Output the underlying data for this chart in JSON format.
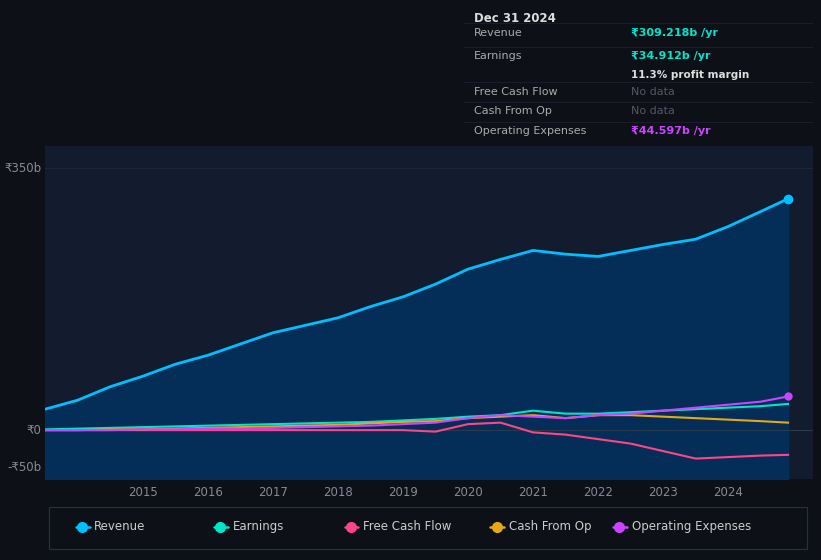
{
  "background_color": "#0d1117",
  "plot_bg_color": "#121c2e",
  "grid_color": "#1e2a3a",
  "ylabel_350": "₹350b",
  "ylabel_0": "₹0",
  "ylabel_neg50": "-₹50b",
  "x_years": [
    2013.5,
    2014.0,
    2014.5,
    2015.0,
    2015.5,
    2016.0,
    2016.5,
    2017.0,
    2017.5,
    2018.0,
    2018.5,
    2019.0,
    2019.5,
    2020.0,
    2020.5,
    2021.0,
    2021.5,
    2022.0,
    2022.5,
    2023.0,
    2023.5,
    2024.0,
    2024.5,
    2024.92
  ],
  "revenue": [
    28,
    40,
    58,
    72,
    88,
    100,
    115,
    130,
    140,
    150,
    165,
    178,
    195,
    215,
    228,
    240,
    235,
    232,
    240,
    248,
    255,
    272,
    292,
    309
  ],
  "earnings": [
    1,
    2,
    3,
    4,
    5,
    6,
    7,
    8,
    9,
    10,
    11,
    13,
    15,
    18,
    20,
    26,
    22,
    22,
    24,
    26,
    28,
    30,
    32,
    35
  ],
  "free_cash_flow": [
    0,
    0,
    0,
    0,
    0,
    0,
    0,
    0,
    0,
    0,
    0,
    0,
    -2,
    8,
    10,
    -3,
    -6,
    -12,
    -18,
    -28,
    -38,
    -36,
    -34,
    -33
  ],
  "cash_from_op": [
    0,
    0,
    1,
    1,
    2,
    3,
    4,
    5,
    6,
    7,
    9,
    11,
    12,
    16,
    18,
    20,
    16,
    20,
    20,
    18,
    16,
    14,
    12,
    10
  ],
  "operating_expenses": [
    0,
    0,
    0,
    1,
    1,
    2,
    2,
    3,
    4,
    5,
    6,
    8,
    10,
    16,
    20,
    18,
    16,
    20,
    22,
    26,
    30,
    34,
    38,
    45
  ],
  "revenue_color": "#00bfff",
  "earnings_color": "#00e5cc",
  "free_cash_flow_color": "#ff4488",
  "cash_from_op_color": "#e6a817",
  "operating_expenses_color": "#cc44ff",
  "legend_items": [
    "Revenue",
    "Earnings",
    "Free Cash Flow",
    "Cash From Op",
    "Operating Expenses"
  ],
  "info_box": {
    "title": "Dec 31 2024",
    "revenue_label": "Revenue",
    "revenue_value": "₹309.218b /yr",
    "earnings_label": "Earnings",
    "earnings_value": "₹34.912b /yr",
    "profit_margin": "11.3% profit margin",
    "fcf_label": "Free Cash Flow",
    "fcf_value": "No data",
    "cfop_label": "Cash From Op",
    "cfop_value": "No data",
    "opex_label": "Operating Expenses",
    "opex_value": "₹44.597b /yr"
  },
  "tick_years": [
    2015,
    2016,
    2017,
    2018,
    2019,
    2020,
    2021,
    2022,
    2023,
    2024
  ],
  "xlim": [
    2013.5,
    2025.3
  ],
  "ylim": [
    -65,
    380
  ]
}
